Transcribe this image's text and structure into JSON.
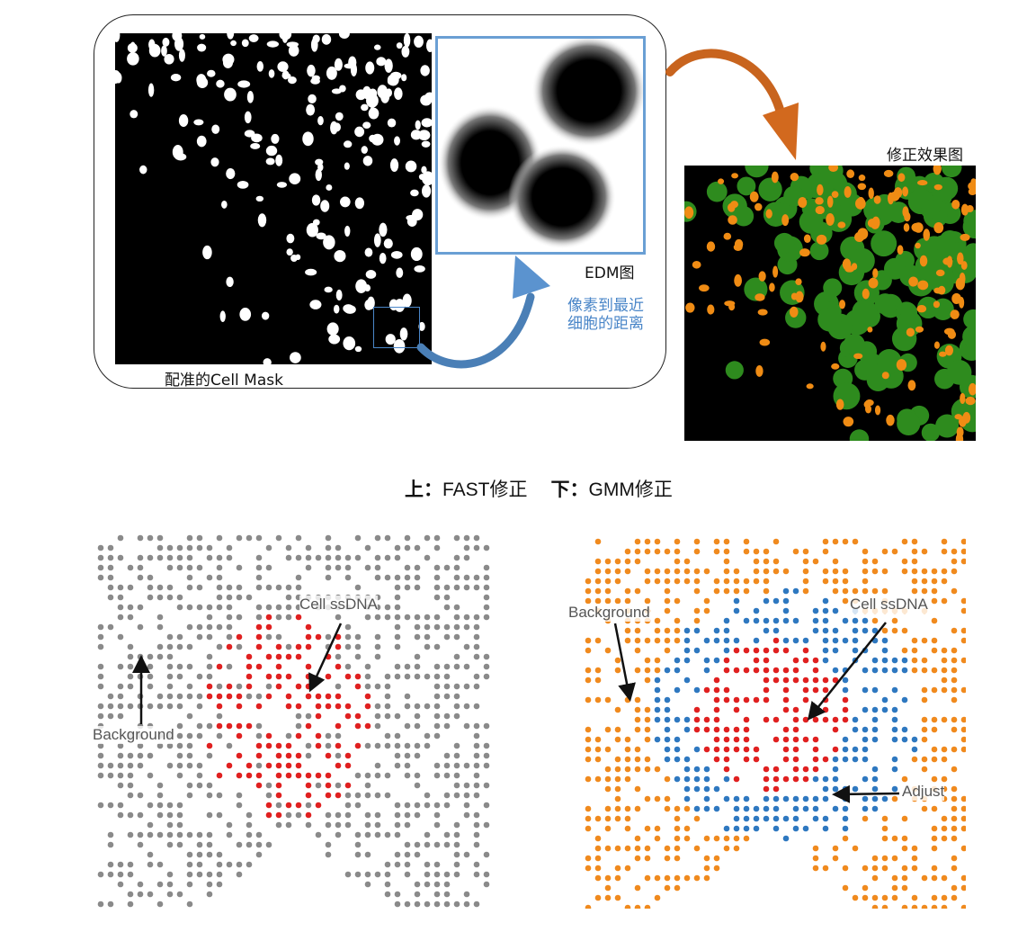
{
  "top": {
    "mask_label": "配准的Cell Mask",
    "edm_label": "EDM图",
    "edm_note_line1": "像素到最近",
    "edm_note_line2": "细胞的距离",
    "corrected_label": "修正效果图"
  },
  "middle": {
    "top_prefix": "上：",
    "top_text": "FAST修正",
    "bottom_prefix": "下：",
    "bottom_text": "GMM修正"
  },
  "left_plot": {
    "cell_label": "Cell ssDNA",
    "background_label": "Background"
  },
  "right_plot": {
    "cell_label": "Cell ssDNA",
    "background_label": "Background",
    "adjust_label": "Adjust"
  },
  "colors": {
    "mask_bg": "#000000",
    "cell_white": "#ffffff",
    "edm_border": "#6a9fd4",
    "curve_arrow_blue": "#4a7fb6",
    "curve_arrow_orange": "#c8641e",
    "corrected_halo": "#2e8b1e",
    "corrected_core": "#f08c14",
    "background_grey": "#8a8a8a",
    "cell_red": "#e02020",
    "background_orange": "#f08a1e",
    "adjust_blue": "#2e78c0"
  }
}
